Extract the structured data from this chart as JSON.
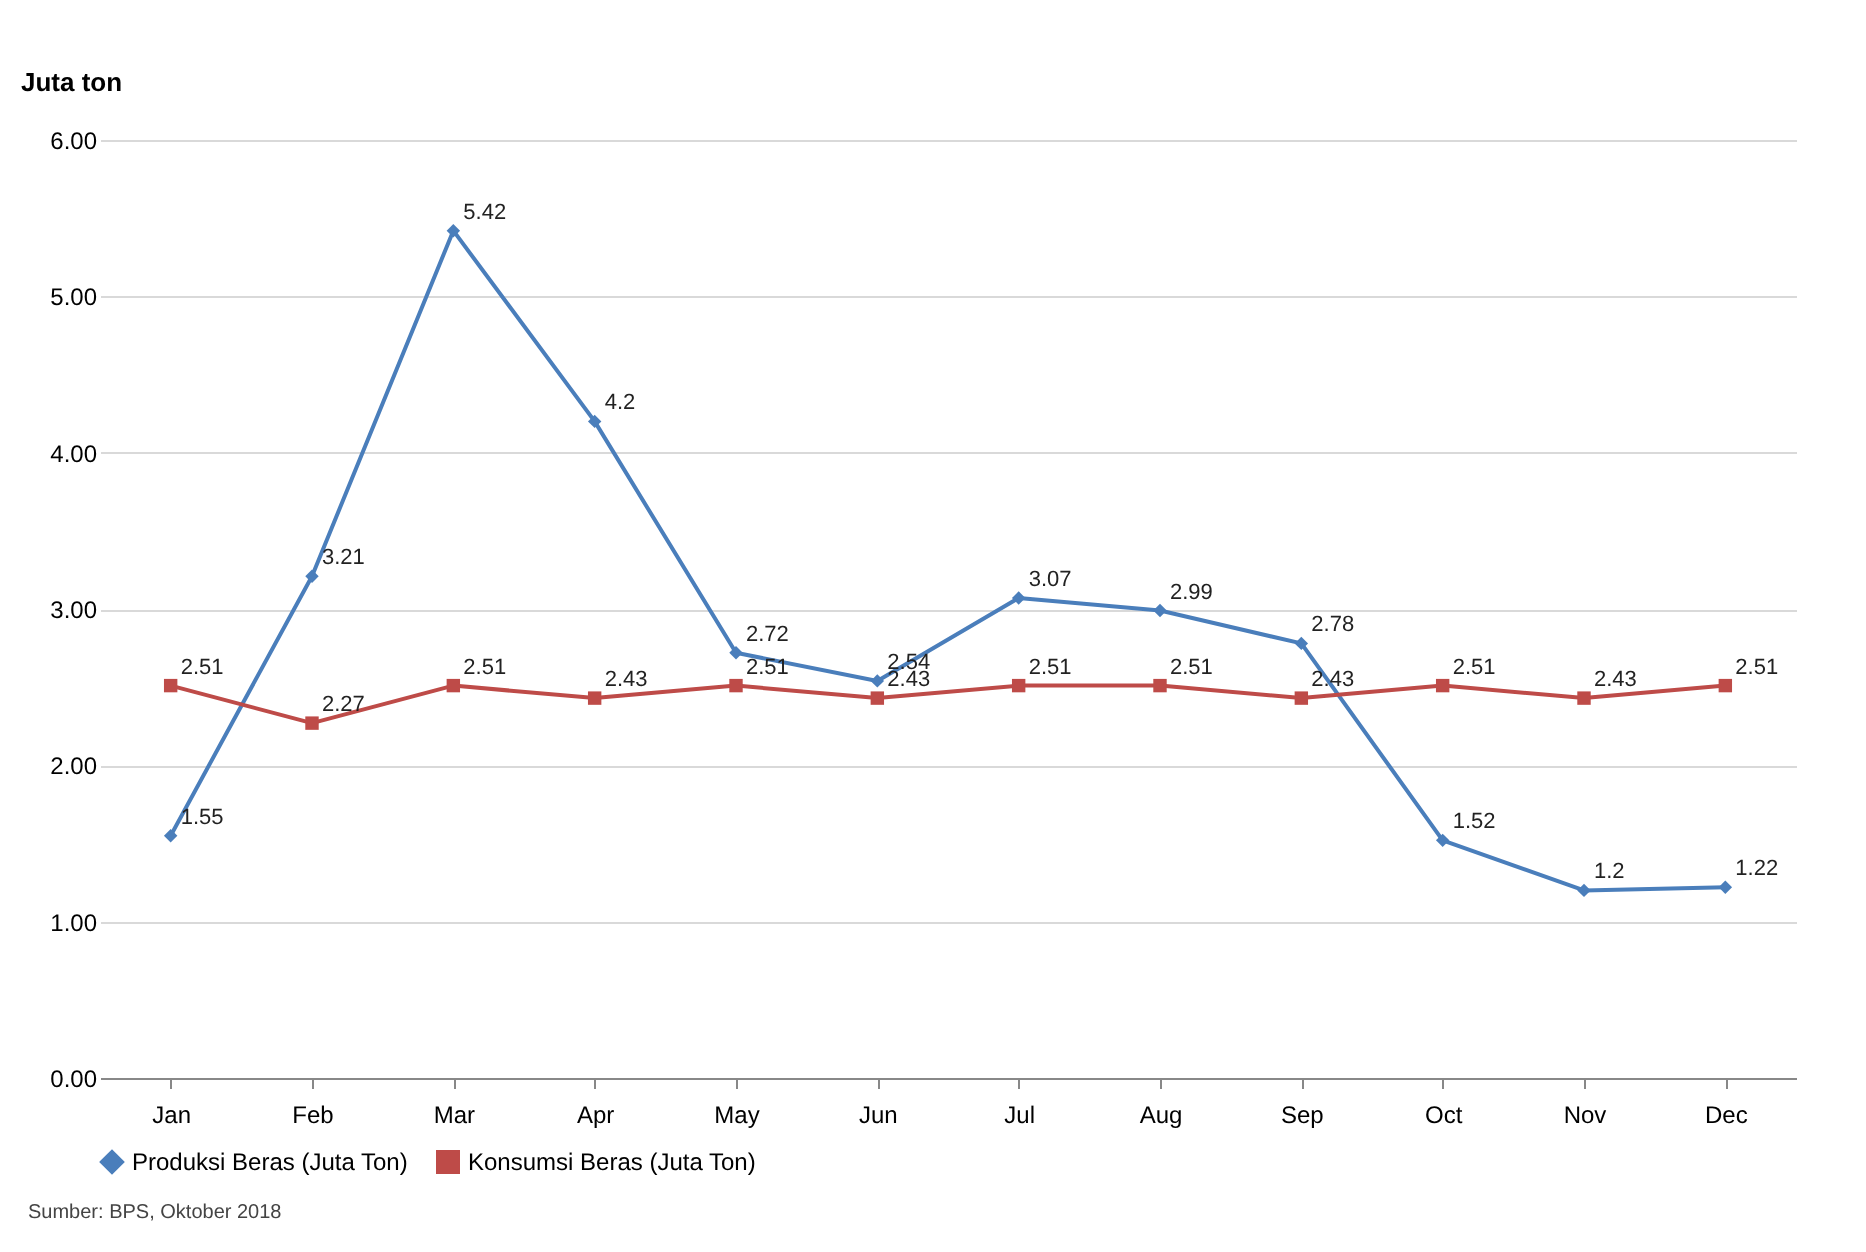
{
  "chart_data": {
    "type": "line",
    "ylabel": "Juta ton",
    "categories": [
      "Jan",
      "Feb",
      "Mar",
      "Apr",
      "May",
      "Jun",
      "Jul",
      "Aug",
      "Sep",
      "Oct",
      "Nov",
      "Dec"
    ],
    "series": [
      {
        "name": "Produksi Beras (Juta Ton)",
        "color": "#4a7ebb",
        "marker": "diamond",
        "values": [
          1.55,
          3.21,
          5.42,
          4.2,
          2.72,
          2.54,
          3.07,
          2.99,
          2.78,
          1.52,
          1.2,
          1.22
        ]
      },
      {
        "name": "Konsumsi Beras (Juta Ton)",
        "color": "#be4b48",
        "marker": "square",
        "values": [
          2.51,
          2.27,
          2.51,
          2.43,
          2.51,
          2.43,
          2.51,
          2.51,
          2.43,
          2.51,
          2.43,
          2.51
        ]
      }
    ],
    "ylim": [
      0,
      6
    ],
    "yticks": [
      {
        "value": 0,
        "label": "0.00"
      },
      {
        "value": 1,
        "label": "1.00"
      },
      {
        "value": 2,
        "label": "2.00"
      },
      {
        "value": 3,
        "label": "3.00"
      },
      {
        "value": 4,
        "label": "4.00"
      },
      {
        "value": 5,
        "label": "5.00"
      },
      {
        "value": 6,
        "label": "6.00"
      }
    ],
    "grid": "y",
    "legend": "bottom",
    "data_labels": true,
    "line_style": "solid",
    "annotations": [
      "Sumber: BPS, Oktober 2018"
    ]
  }
}
